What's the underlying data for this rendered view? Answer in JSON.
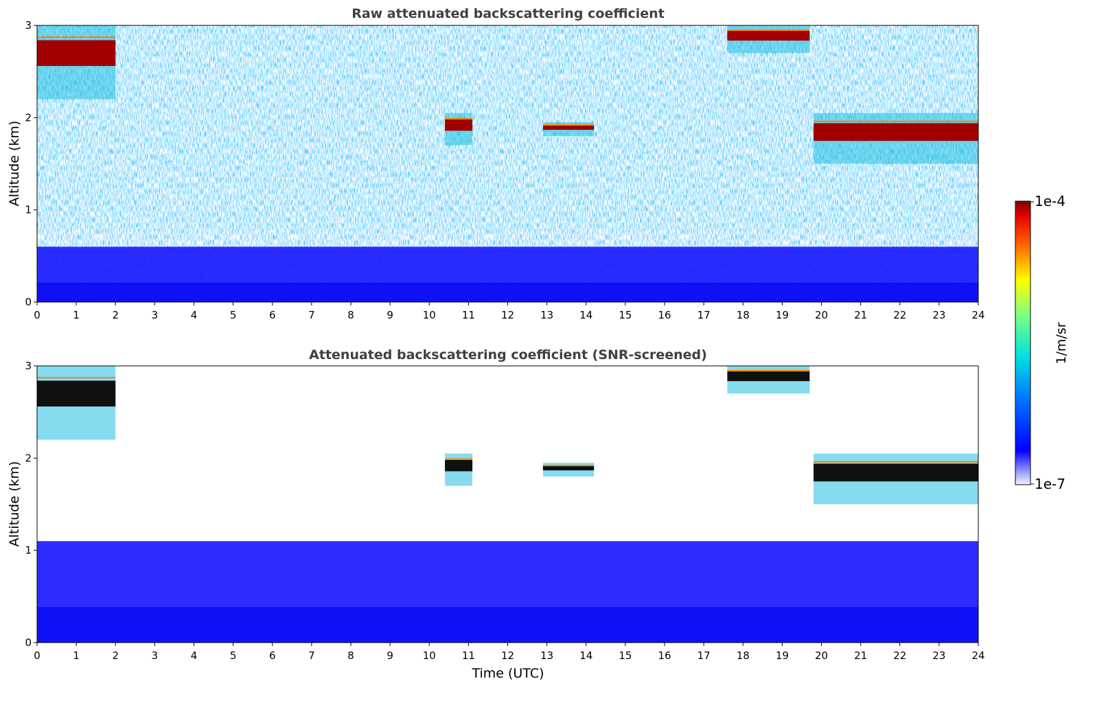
{
  "chart_data": [
    {
      "type": "heatmap",
      "title": "Raw attenuated backscattering coefficient",
      "xlabel": "",
      "ylabel": "Altitude (km)",
      "xlim": [
        0,
        24
      ],
      "ylim": [
        0,
        3
      ],
      "x_ticks": [
        "0",
        "1",
        "2",
        "3",
        "4",
        "5",
        "6",
        "7",
        "8",
        "9",
        "10",
        "11",
        "12",
        "13",
        "14",
        "15",
        "16",
        "17",
        "18",
        "19",
        "20",
        "21",
        "22",
        "23",
        "24"
      ],
      "y_ticks": [
        "0",
        "1",
        "2",
        "3"
      ],
      "colorscale": "log (jet)",
      "features": [
        {
          "type": "boundary_layer",
          "time_utc": [
            0,
            24
          ],
          "altitude_km": [
            0,
            0.6
          ]
        },
        {
          "type": "cloud",
          "time_utc": [
            0,
            2
          ],
          "altitude_km": [
            2.2,
            3.0
          ]
        },
        {
          "type": "cloud",
          "time_utc": [
            10.4,
            11.1
          ],
          "altitude_km": [
            1.7,
            2.05
          ]
        },
        {
          "type": "cloud",
          "time_utc": [
            12.9,
            14.2
          ],
          "altitude_km": [
            1.8,
            1.95
          ]
        },
        {
          "type": "cloud",
          "time_utc": [
            17.6,
            19.7
          ],
          "altitude_km": [
            2.7,
            3.0
          ]
        },
        {
          "type": "cloud",
          "time_utc": [
            19.8,
            24
          ],
          "altitude_km": [
            1.5,
            2.05
          ]
        }
      ]
    },
    {
      "type": "heatmap",
      "title": "Attenuated backscattering coefficient (SNR-screened)",
      "xlabel": "Time (UTC)",
      "ylabel": "Altitude (km)",
      "xlim": [
        0,
        24
      ],
      "ylim": [
        0,
        3
      ],
      "x_ticks": [
        "0",
        "1",
        "2",
        "3",
        "4",
        "5",
        "6",
        "7",
        "8",
        "9",
        "10",
        "11",
        "12",
        "13",
        "14",
        "15",
        "16",
        "17",
        "18",
        "19",
        "20",
        "21",
        "22",
        "23",
        "24"
      ],
      "y_ticks": [
        "0",
        "1",
        "2",
        "3"
      ],
      "colorscale": "log (jet)",
      "features": [
        {
          "type": "boundary_layer",
          "time_utc": [
            0,
            24
          ],
          "altitude_km": [
            0,
            1.1
          ]
        },
        {
          "type": "cloud",
          "time_utc": [
            0,
            2
          ],
          "altitude_km": [
            2.2,
            3.0
          ]
        },
        {
          "type": "cloud",
          "time_utc": [
            10.4,
            11.1
          ],
          "altitude_km": [
            1.7,
            2.05
          ]
        },
        {
          "type": "cloud",
          "time_utc": [
            12.9,
            14.2
          ],
          "altitude_km": [
            1.8,
            1.95
          ]
        },
        {
          "type": "cloud",
          "time_utc": [
            17.6,
            19.7
          ],
          "altitude_km": [
            2.7,
            3.0
          ]
        },
        {
          "type": "cloud",
          "time_utc": [
            19.8,
            24
          ],
          "altitude_km": [
            1.5,
            2.05
          ]
        }
      ]
    }
  ],
  "colorbar": {
    "max_label": "1e-4",
    "min_label": "1e-7",
    "unit_label": "1/m/sr"
  }
}
